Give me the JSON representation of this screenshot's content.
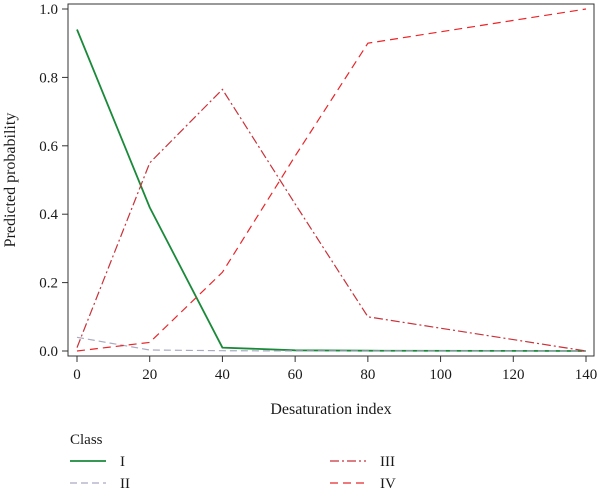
{
  "chart_data": {
    "type": "line",
    "xlabel": "Desaturation index",
    "ylabel": "Predicted probability",
    "xlim": [
      0,
      140
    ],
    "ylim": [
      0,
      1.0
    ],
    "x_ticks": [
      "0",
      "20",
      "40",
      "60",
      "80",
      "100",
      "120",
      "140"
    ],
    "y_ticks": [
      "0.0",
      "0.2",
      "0.4",
      "0.6",
      "0.8",
      "1.0"
    ],
    "x": [
      0,
      20,
      40,
      60,
      80,
      140
    ],
    "legend_title": "Class",
    "legend_placement": "bottom",
    "series": [
      {
        "name": "I",
        "values": [
          0.94,
          0.42,
          0.01,
          0.002,
          0.001,
          0.0
        ],
        "color": "#1a8a3a",
        "dash": "solid"
      },
      {
        "name": "II",
        "values": [
          0.04,
          0.003,
          0.001,
          0.0,
          0.0,
          0.0
        ],
        "color": "#a9a9c2",
        "dash": "dash"
      },
      {
        "name": "III",
        "values": [
          0.01,
          0.55,
          0.765,
          0.43,
          0.1,
          0.0
        ],
        "color": "#c8323a",
        "dash": "dashdot"
      },
      {
        "name": "IV",
        "values": [
          0.0,
          0.025,
          0.23,
          0.57,
          0.9,
          1.0
        ],
        "color": "#e8262a",
        "dash": "longdash"
      }
    ]
  }
}
